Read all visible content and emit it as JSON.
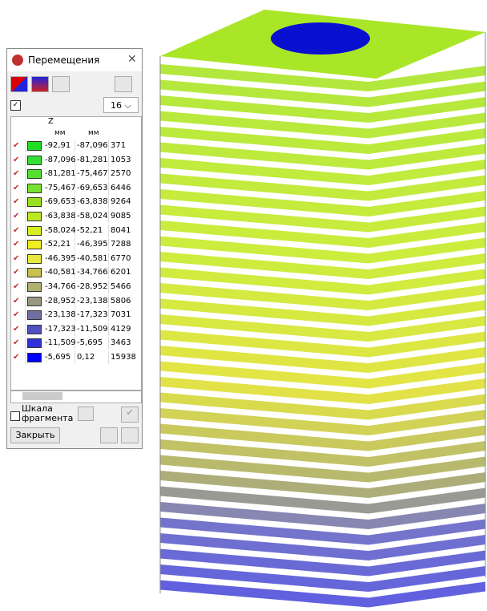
{
  "window": {
    "title": "Перемещения",
    "count_select": "16",
    "column_header": "Z",
    "units": [
      "мм",
      "мм"
    ],
    "rows": [
      {
        "color": "#22dd22",
        "from": "-92,91",
        "to": "-87,096",
        "count": "371"
      },
      {
        "color": "#33e033",
        "from": "-87,096",
        "to": "-81,281",
        "count": "1053"
      },
      {
        "color": "#55e030",
        "from": "-81,281",
        "to": "-75,467",
        "count": "2570"
      },
      {
        "color": "#77e030",
        "from": "-75,467",
        "to": "-69,653",
        "count": "6446"
      },
      {
        "color": "#99e020",
        "from": "-69,653",
        "to": "-63,838",
        "count": "9264"
      },
      {
        "color": "#bbe820",
        "from": "-63,838",
        "to": "-58,024",
        "count": "9085"
      },
      {
        "color": "#d8ee20",
        "from": "-58,024",
        "to": "-52,21",
        "count": "8041"
      },
      {
        "color": "#eeee20",
        "from": "-52,21",
        "to": "-46,395",
        "count": "7288"
      },
      {
        "color": "#e8e840",
        "from": "-46,395",
        "to": "-40,581",
        "count": "6770"
      },
      {
        "color": "#c8c050",
        "from": "-40,581",
        "to": "-34,766",
        "count": "6201"
      },
      {
        "color": "#b0b070",
        "from": "-34,766",
        "to": "-28,952",
        "count": "5466"
      },
      {
        "color": "#989880",
        "from": "-28,952",
        "to": "-23,138",
        "count": "5806"
      },
      {
        "color": "#7070a0",
        "from": "-23,138",
        "to": "-17,323",
        "count": "7031"
      },
      {
        "color": "#5050c0",
        "from": "-17,323",
        "to": "-11,509",
        "count": "4129"
      },
      {
        "color": "#3030d8",
        "from": "-11,509",
        "to": "-5,695",
        "count": "3463"
      },
      {
        "color": "#0000ff",
        "from": "-5,695",
        "to": "0,12",
        "count": "15938"
      }
    ],
    "scale_checkbox": "Шкала фрагмента",
    "close_button": "Закрыть"
  }
}
